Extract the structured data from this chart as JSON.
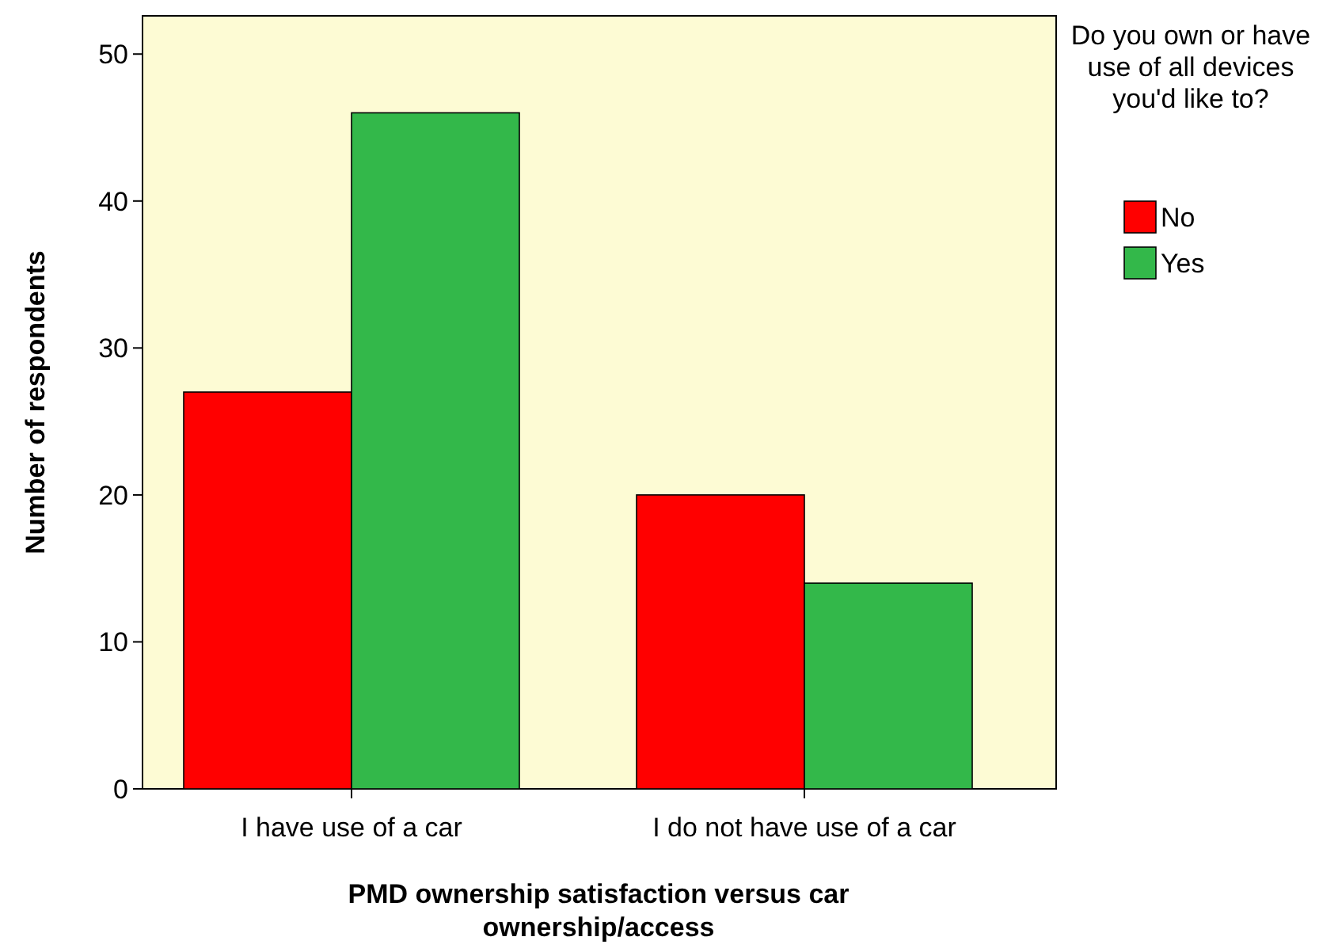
{
  "chart_data": {
    "type": "bar",
    "xlabel": "PMD ownership satisfaction versus car ownership/access",
    "ylabel": "Number of respondents",
    "legend_title": "Do you own or have use of all devices you'd like to?",
    "categories": [
      "I have use of a car",
      "I do not have use of a car"
    ],
    "series": [
      {
        "name": "No",
        "color": "#ff0000",
        "values": [
          27,
          20
        ]
      },
      {
        "name": "Yes",
        "color": "#33b84a",
        "values": [
          46,
          14
        ]
      }
    ],
    "ylim": [
      0,
      52.6
    ],
    "yticks": [
      0,
      10,
      20,
      30,
      40,
      50
    ],
    "grid": false,
    "legend": "right"
  }
}
